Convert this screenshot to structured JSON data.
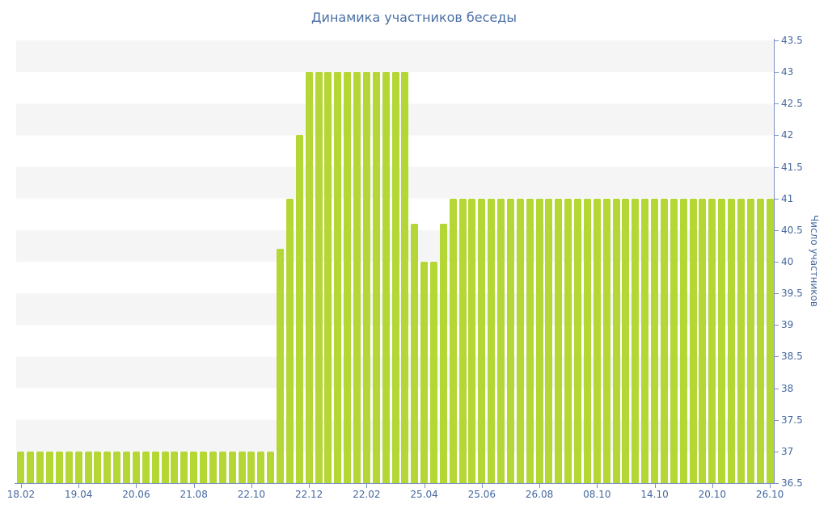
{
  "title": "Динамика участников беседы",
  "colors": {
    "background": "#ffffff",
    "bar": "#b4d735",
    "title_text": "#4a6fa5",
    "axis_text": "#44679f",
    "axis_line": "#7a90bd",
    "band_gray": "#f5f5f6"
  },
  "chart_data": {
    "type": "bar",
    "title": "Динамика участников беседы",
    "xlabel": "",
    "ylabel": "Число участников",
    "ylim": [
      36.5,
      43.5
    ],
    "y_tick_step": 0.5,
    "y_tick_labels": [
      "43.5",
      "43",
      "42.5",
      "42",
      "41.5",
      "41",
      "40.5",
      "40",
      "39.5",
      "39",
      "38.5",
      "38",
      "37.5",
      "37",
      "36.5"
    ],
    "y_axis_side": "right",
    "legend": "none",
    "grid": "alternating horizontal bands every 0.5",
    "x_tick_interval": 6,
    "x_tick_labels": [
      "18.02",
      "19.04",
      "20.06",
      "21.08",
      "22.10",
      "22.12",
      "22.02",
      "25.04",
      "25.06",
      "26.08",
      "08.10",
      "14.10",
      "20.10",
      "26.10"
    ],
    "values": [
      37,
      37,
      37,
      37,
      37,
      37,
      37,
      37,
      37,
      37,
      37,
      37,
      37,
      37,
      37,
      37,
      37,
      37,
      37,
      37,
      37,
      37,
      37,
      37,
      37,
      37,
      37,
      40.2,
      41,
      42,
      43,
      43,
      43,
      43,
      43,
      43,
      43,
      43,
      43,
      43,
      43,
      40.6,
      40,
      40,
      40.6,
      41,
      41,
      41,
      41,
      41,
      41,
      41,
      41,
      41,
      41,
      41,
      41,
      41,
      41,
      41,
      41,
      41,
      41,
      41,
      41,
      41,
      41,
      41,
      41,
      41,
      41,
      41,
      41,
      41,
      41,
      41,
      41,
      41,
      41
    ]
  }
}
